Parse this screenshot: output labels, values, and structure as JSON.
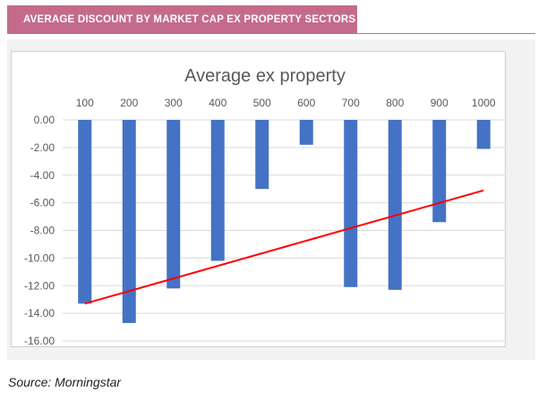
{
  "header": {
    "title": "AVERAGE DISCOUNT BY MARKET CAP EX PROPERTY SECTORS"
  },
  "colors": {
    "header_bg": "#c46b8c",
    "bar": "#4472c4",
    "trend": "#ff0000",
    "panel_bg": "#f2f2f2"
  },
  "chart_data": {
    "type": "bar",
    "title": "Average ex property",
    "categories": [
      "100",
      "200",
      "300",
      "400",
      "500",
      "600",
      "700",
      "800",
      "900",
      "1000"
    ],
    "series": [
      {
        "values": [
          -13.3,
          -14.7,
          -12.2,
          -10.2,
          -5.0,
          -1.8,
          -12.1,
          -12.3,
          -7.4,
          -2.1
        ]
      }
    ],
    "trendline": {
      "type": "linear",
      "start": -13.3,
      "end": -5.1
    },
    "ylim": [
      -16,
      0
    ],
    "yticks": [
      "0.00",
      "-2.00",
      "-4.00",
      "-6.00",
      "-8.00",
      "-10.00",
      "-12.00",
      "-14.00",
      "-16.00"
    ],
    "x_axis_position": "top",
    "grid": true,
    "legend": "none"
  },
  "footer": {
    "source": "Source: Morningstar"
  }
}
